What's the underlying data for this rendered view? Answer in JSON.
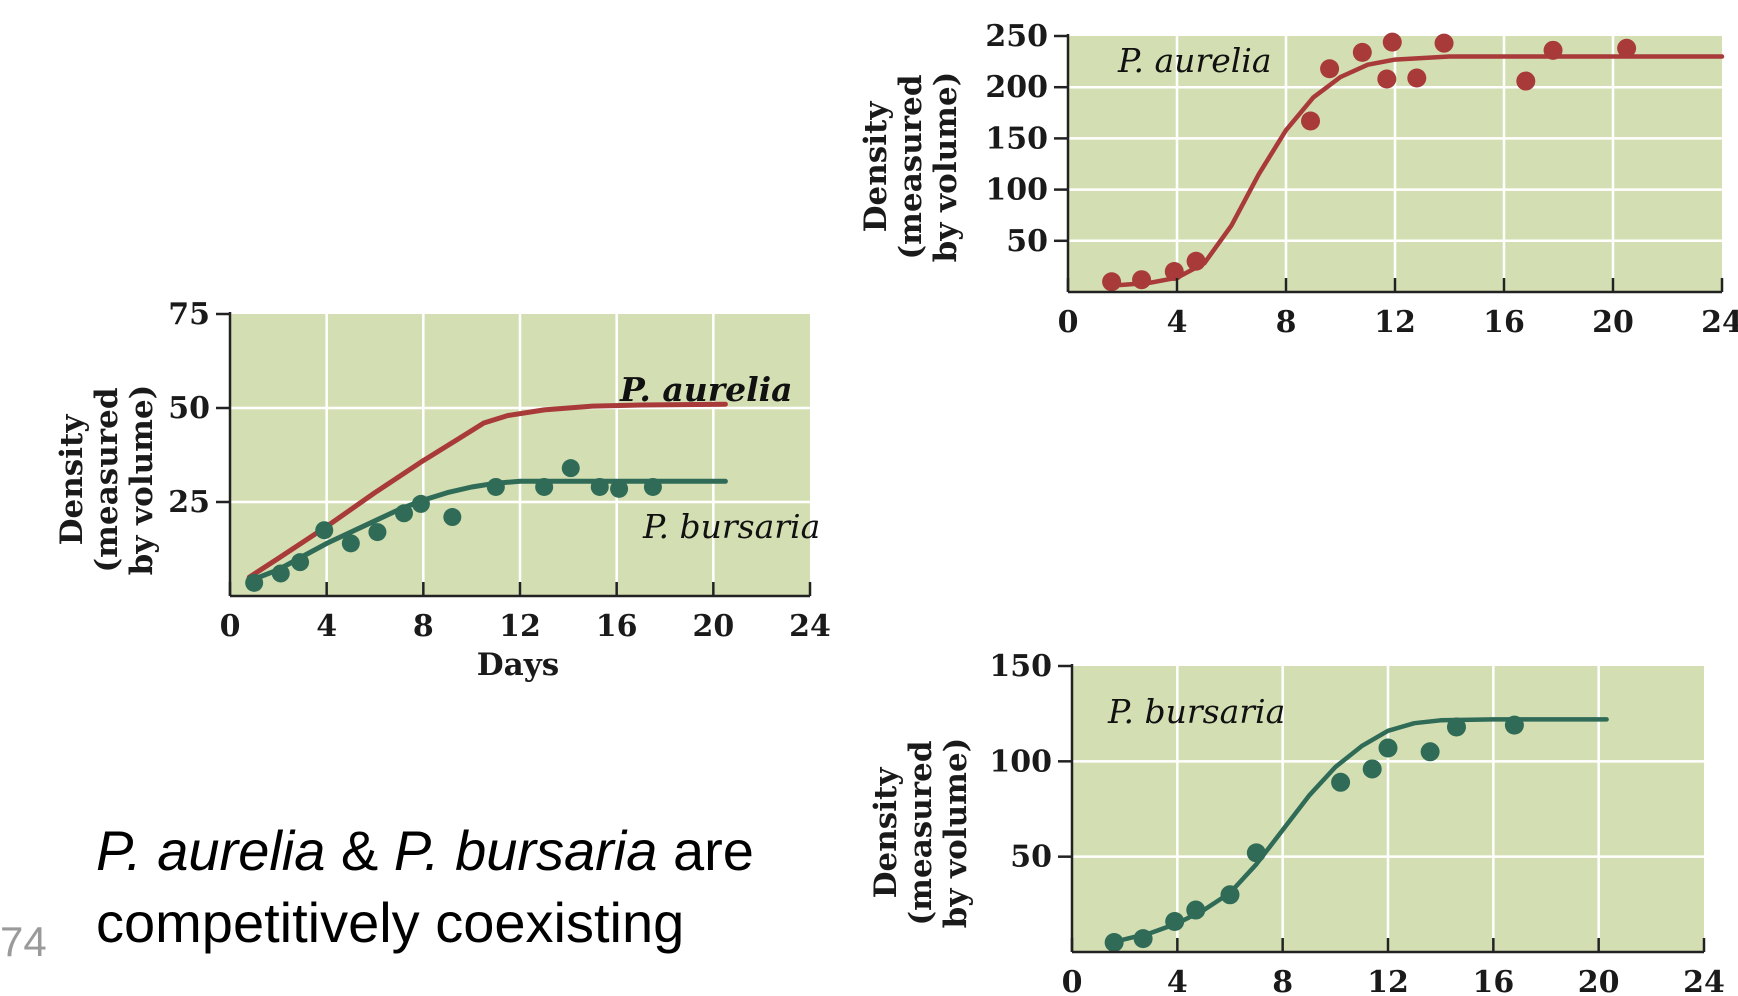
{
  "caption": {
    "species_a": "P. aurelia",
    "amp": " & ",
    "species_b": "P. bursaria",
    "tail_1": " are",
    "line_2": "competitively coexisting"
  },
  "slide_number": "74",
  "colors": {
    "plot_bg": "#d3dfb3",
    "grid": "#ffffff",
    "aurelia": "#a83a3a",
    "bursaria": "#2f6b57"
  },
  "chart_data": [
    {
      "id": "mixed",
      "type": "scatter",
      "xlabel": "Days",
      "ylabel": [
        "Density",
        "(measured",
        "by volume)"
      ],
      "xlim": [
        0,
        24
      ],
      "ylim": [
        0,
        75
      ],
      "xticks": [
        0,
        4,
        8,
        12,
        16,
        20,
        24
      ],
      "yticks": [
        25,
        50,
        75
      ],
      "grid": true,
      "series": [
        {
          "name": "P. aurelia",
          "color": "#a83a3a",
          "points": [],
          "curve": [
            [
              0.8,
              5
            ],
            [
              2,
              10
            ],
            [
              4,
              18.5
            ],
            [
              6,
              27.5
            ],
            [
              8,
              36
            ],
            [
              9.5,
              42
            ],
            [
              10.5,
              46
            ],
            [
              11.5,
              48
            ],
            [
              13,
              49.5
            ],
            [
              15,
              50.5
            ],
            [
              17,
              50.8
            ],
            [
              20.5,
              51
            ]
          ]
        },
        {
          "name": "P. bursaria",
          "color": "#2f6b57",
          "points": [
            [
              1,
              3.5
            ],
            [
              2.1,
              6
            ],
            [
              2.9,
              9
            ],
            [
              3.9,
              17.5
            ],
            [
              5,
              14
            ],
            [
              6.1,
              17
            ],
            [
              7.2,
              22
            ],
            [
              7.9,
              24.5
            ],
            [
              9.2,
              21
            ],
            [
              11,
              29
            ],
            [
              13,
              29
            ],
            [
              14.1,
              34
            ],
            [
              15.3,
              29
            ],
            [
              16.1,
              28.5
            ],
            [
              17.5,
              29
            ]
          ],
          "curve": [
            [
              0.8,
              4
            ],
            [
              2,
              7
            ],
            [
              3,
              10.5
            ],
            [
              4,
              14
            ],
            [
              5,
              17
            ],
            [
              6,
              20
            ],
            [
              7,
              23
            ],
            [
              8,
              25.5
            ],
            [
              9,
              27.5
            ],
            [
              10,
              29
            ],
            [
              11,
              30
            ],
            [
              12,
              30.5
            ],
            [
              14,
              30.5
            ],
            [
              17,
              30.5
            ],
            [
              20.5,
              30.5
            ]
          ]
        }
      ]
    },
    {
      "id": "aurelia-alone",
      "type": "scatter",
      "ylabel": [
        "Density",
        "(measured",
        "by volume)"
      ],
      "xlim": [
        0,
        24
      ],
      "ylim": [
        0,
        250
      ],
      "xticks": [
        0,
        4,
        8,
        12,
        16,
        20,
        24
      ],
      "yticks": [
        50,
        100,
        150,
        200,
        250
      ],
      "grid": true,
      "series": [
        {
          "name": "P. aurelia",
          "color": "#a83a3a",
          "points": [
            [
              1.6,
              10
            ],
            [
              2.7,
              12
            ],
            [
              3.9,
              20
            ],
            [
              4.7,
              30
            ],
            [
              8.9,
              167
            ],
            [
              9.6,
              218
            ],
            [
              10.8,
              234
            ],
            [
              11.7,
              208
            ],
            [
              11.9,
              244
            ],
            [
              12.8,
              209
            ],
            [
              13.8,
              243
            ],
            [
              16.8,
              206
            ],
            [
              17.8,
              236
            ],
            [
              20.5,
              238
            ]
          ],
          "curve": [
            [
              1.5,
              6
            ],
            [
              3,
              9
            ],
            [
              4,
              14
            ],
            [
              5,
              28
            ],
            [
              6,
              65
            ],
            [
              7,
              115
            ],
            [
              8,
              158
            ],
            [
              9,
              190
            ],
            [
              10,
              210
            ],
            [
              11,
              222
            ],
            [
              12,
              227
            ],
            [
              14,
              230
            ],
            [
              17,
              230
            ],
            [
              20,
              230
            ],
            [
              24,
              230
            ]
          ]
        }
      ]
    },
    {
      "id": "bursaria-alone",
      "type": "scatter",
      "ylabel": [
        "Density",
        "(measured",
        "by volume)"
      ],
      "xlim": [
        0,
        24
      ],
      "ylim": [
        0,
        150
      ],
      "xticks": [
        0,
        4,
        8,
        12,
        16,
        20,
        24
      ],
      "yticks": [
        50,
        100,
        150
      ],
      "grid": true,
      "series": [
        {
          "name": "P. bursaria",
          "color": "#2f6b57",
          "points": [
            [
              1.6,
              5
            ],
            [
              2.7,
              7
            ],
            [
              3.9,
              16
            ],
            [
              4.7,
              22
            ],
            [
              6,
              30
            ],
            [
              7,
              52
            ],
            [
              10.2,
              89
            ],
            [
              11.4,
              96
            ],
            [
              12,
              107
            ],
            [
              13.6,
              105
            ],
            [
              14.6,
              118
            ],
            [
              16.8,
              119
            ]
          ],
          "curve": [
            [
              1.5,
              5
            ],
            [
              3,
              10
            ],
            [
              4,
              15
            ],
            [
              5,
              22
            ],
            [
              6,
              31
            ],
            [
              7,
              46
            ],
            [
              8,
              64
            ],
            [
              9,
              82
            ],
            [
              10,
              97
            ],
            [
              11,
              108
            ],
            [
              12,
              116
            ],
            [
              13,
              120
            ],
            [
              14,
              121.5
            ],
            [
              16,
              122
            ],
            [
              20.3,
              122
            ]
          ]
        }
      ]
    }
  ],
  "labels": {
    "mixed_aurelia": "P. aurelia",
    "mixed_bursaria": "P. bursaria",
    "panel2_aurelia": "P. aurelia",
    "panel3_bursaria": "P. bursaria"
  }
}
